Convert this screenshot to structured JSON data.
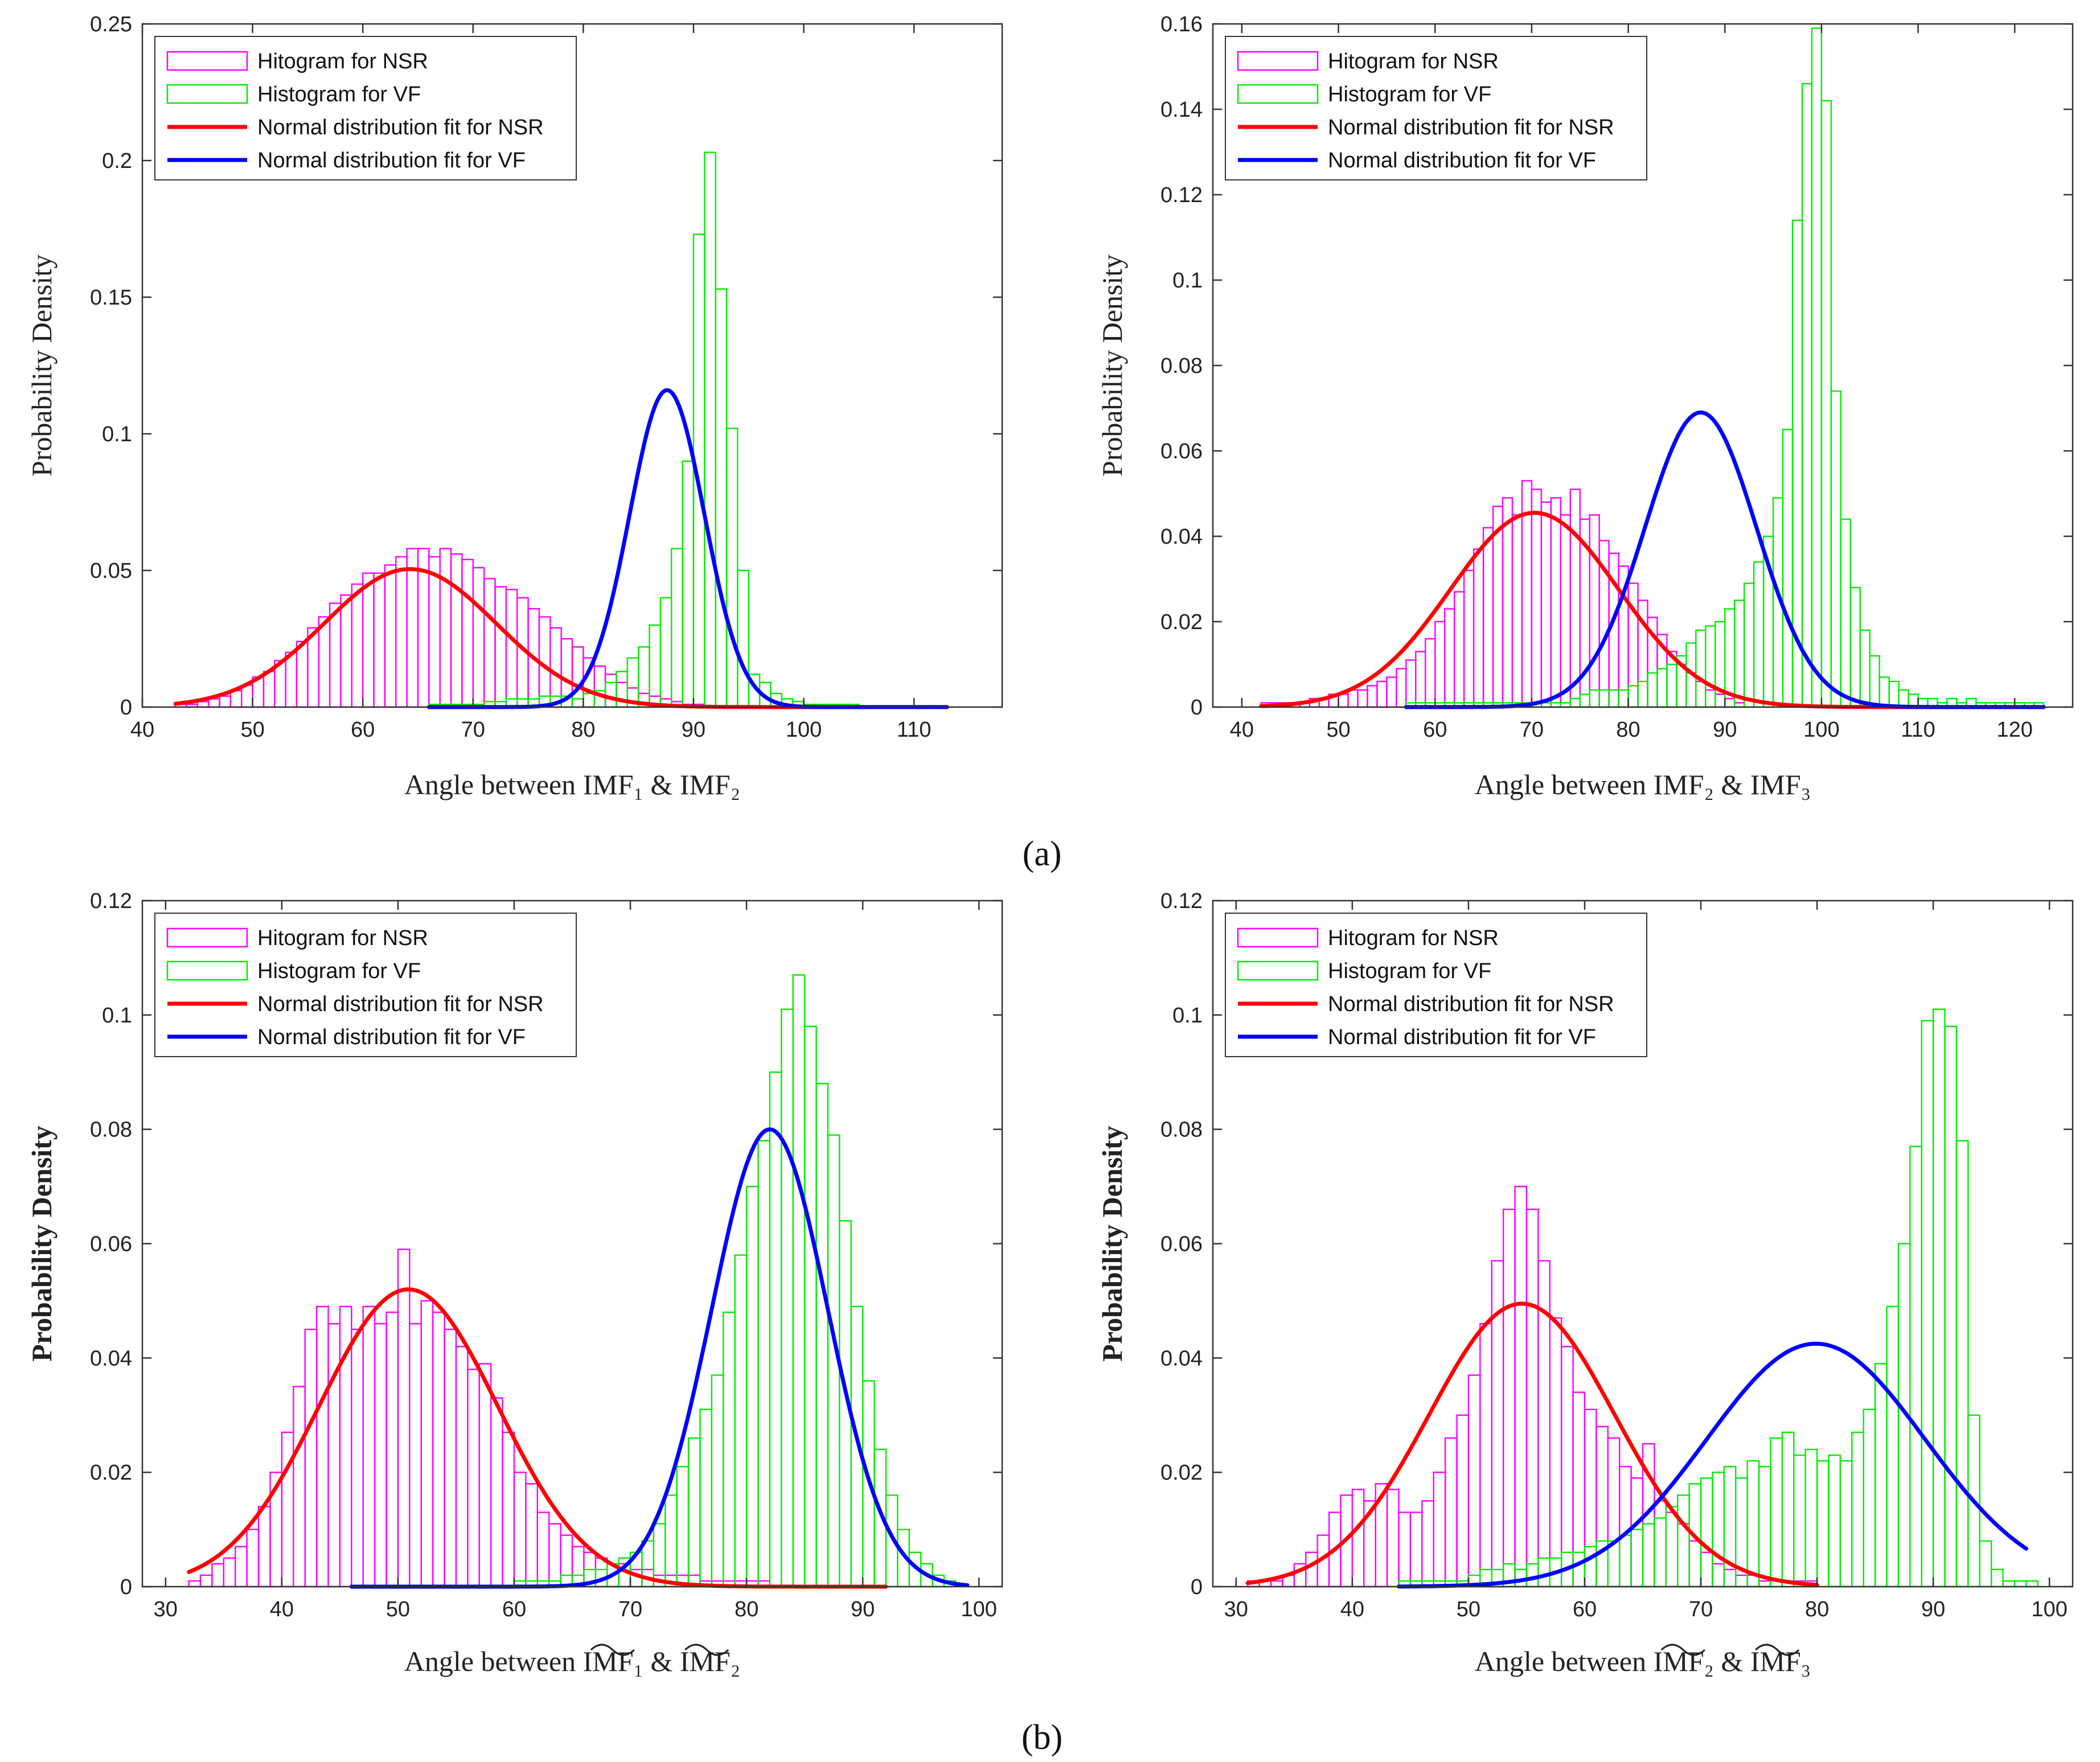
{
  "captions": {
    "a": "(a)",
    "b": "(b)"
  },
  "legend": {
    "hist_nsr": "Hitogram for NSR",
    "hist_vf": "Histogram for VF",
    "fit_nsr": "Normal distribution fit for NSR",
    "fit_vf": "Normal distribution fit for VF"
  },
  "colors": {
    "nsr_hist": "#ff00ff",
    "vf_hist": "#00ee00",
    "fit_nsr": "#ff0000",
    "fit_vf": "#0000ff"
  },
  "chart_data": [
    {
      "type": "bar",
      "panel": "a-left",
      "xlabel": "Angle between IMF₁ & IMF₂",
      "ylabel": "Probability Density",
      "xlim": [
        40,
        118
      ],
      "ylim": [
        0,
        0.25
      ],
      "xticks": [
        40,
        50,
        60,
        70,
        80,
        90,
        100,
        110
      ],
      "yticks": [
        0,
        0.05,
        0.1,
        0.15,
        0.2,
        0.25
      ],
      "ytick_labels": [
        "0",
        "0.05",
        "0.1",
        "0.15",
        "0.2",
        "0.25"
      ],
      "legend_position": "top-left",
      "grid": false,
      "series": [
        {
          "name": "Hitogram for NSR",
          "kind": "histogram",
          "x_start": 43,
          "bin_width": 1,
          "values": [
            0.001,
            0.001,
            0.002,
            0.003,
            0.004,
            0.006,
            0.008,
            0.011,
            0.013,
            0.017,
            0.02,
            0.024,
            0.029,
            0.033,
            0.038,
            0.041,
            0.045,
            0.049,
            0.049,
            0.052,
            0.055,
            0.058,
            0.058,
            0.055,
            0.058,
            0.056,
            0.054,
            0.051,
            0.047,
            0.044,
            0.043,
            0.04,
            0.036,
            0.033,
            0.029,
            0.025,
            0.022,
            0.018,
            0.015,
            0.012,
            0.009,
            0.007,
            0.005,
            0.004,
            0.003,
            0.002,
            0.001,
            0.001
          ]
        },
        {
          "name": "Histogram for VF",
          "kind": "histogram",
          "x_start": 66,
          "bin_width": 1,
          "values": [
            0.001,
            0.001,
            0.001,
            0.001,
            0.001,
            0.002,
            0.002,
            0.003,
            0.003,
            0.003,
            0.004,
            0.004,
            0.004,
            0.003,
            0.005,
            0.006,
            0.009,
            0.013,
            0.018,
            0.022,
            0.03,
            0.04,
            0.058,
            0.09,
            0.173,
            0.203,
            0.153,
            0.102,
            0.05,
            0.012,
            0.009,
            0.005,
            0.003,
            0.002,
            0.001,
            0.001,
            0.001,
            0.001,
            0.001
          ]
        },
        {
          "name": "Normal distribution fit for NSR",
          "kind": "normal_fit",
          "mean": 64.3,
          "std": 7.8,
          "peak": 0.0505,
          "x_range": [
            43,
            113
          ]
        },
        {
          "name": "Normal distribution fit for VF",
          "kind": "normal_fit",
          "mean": 87.6,
          "std": 3.4,
          "peak": 0.116,
          "x_range": [
            66,
            113
          ]
        }
      ]
    },
    {
      "type": "bar",
      "panel": "a-right",
      "xlabel": "Angle between IMF₂ & IMF₃",
      "ylabel": "Probability Density",
      "xlim": [
        37,
        126
      ],
      "ylim": [
        0,
        0.16
      ],
      "xticks": [
        40,
        50,
        60,
        70,
        80,
        90,
        100,
        110,
        120
      ],
      "yticks": [
        0,
        0.02,
        0.04,
        0.06,
        0.08,
        0.1,
        0.12,
        0.14,
        0.16
      ],
      "ytick_labels": [
        "0",
        "0.02",
        "0.04",
        "0.06",
        "0.08",
        "0.1",
        "0.12",
        "0.14",
        "0.16"
      ],
      "legend_position": "top-left",
      "grid": false,
      "series": [
        {
          "name": "Hitogram for NSR",
          "kind": "histogram",
          "x_start": 42,
          "bin_width": 1,
          "values": [
            0.001,
            0.001,
            0.001,
            0.001,
            0.001,
            0.002,
            0.002,
            0.003,
            0.003,
            0.004,
            0.004,
            0.005,
            0.006,
            0.007,
            0.009,
            0.011,
            0.013,
            0.016,
            0.02,
            0.023,
            0.027,
            0.032,
            0.037,
            0.042,
            0.047,
            0.049,
            0.045,
            0.053,
            0.051,
            0.048,
            0.049,
            0.045,
            0.051,
            0.044,
            0.045,
            0.039,
            0.036,
            0.033,
            0.029,
            0.025,
            0.021,
            0.017,
            0.013,
            0.01,
            0.008,
            0.006,
            0.004,
            0.003,
            0.002,
            0.001
          ]
        },
        {
          "name": "Histogram for VF",
          "kind": "histogram",
          "x_start": 57,
          "bin_width": 1,
          "values": [
            0.001,
            0.001,
            0.001,
            0.001,
            0.001,
            0.001,
            0.001,
            0.001,
            0.001,
            0.001,
            0.001,
            0.001,
            0.001,
            0.001,
            0.001,
            0.001,
            0.001,
            0.002,
            0.003,
            0.004,
            0.004,
            0.004,
            0.004,
            0.005,
            0.006,
            0.008,
            0.009,
            0.01,
            0.012,
            0.015,
            0.018,
            0.019,
            0.02,
            0.023,
            0.025,
            0.029,
            0.034,
            0.04,
            0.049,
            0.065,
            0.114,
            0.146,
            0.159,
            0.142,
            0.074,
            0.044,
            0.028,
            0.018,
            0.012,
            0.007,
            0.006,
            0.004,
            0.003,
            0.002,
            0.002,
            0.001,
            0.002,
            0.001,
            0.002,
            0.001,
            0.001,
            0.001,
            0.001,
            0.001,
            0.001,
            0.001
          ]
        },
        {
          "name": "Normal distribution fit for NSR",
          "kind": "normal_fit",
          "mean": 70.3,
          "std": 8.7,
          "peak": 0.0455,
          "x_range": [
            42,
            123
          ]
        },
        {
          "name": "Normal distribution fit for VF",
          "kind": "normal_fit",
          "mean": 87.5,
          "std": 5.8,
          "peak": 0.069,
          "x_range": [
            57,
            123
          ]
        }
      ]
    },
    {
      "type": "bar",
      "panel": "b-left",
      "xlabel": "Angle between IMF₁ & IMF₂",
      "ylabel": "Probability Density",
      "xlim": [
        28,
        102
      ],
      "ylim": [
        0,
        0.12
      ],
      "xticks": [
        30,
        40,
        50,
        60,
        70,
        80,
        90,
        100
      ],
      "yticks": [
        0,
        0.02,
        0.04,
        0.06,
        0.08,
        0.1,
        0.12
      ],
      "ytick_labels": [
        "0",
        "0.02",
        "0.04",
        "0.06",
        "0.08",
        "0.1",
        "0.12"
      ],
      "legend_position": "top-left",
      "grid": false,
      "series": [
        {
          "name": "Hitogram for NSR",
          "kind": "histogram",
          "x_start": 32,
          "bin_width": 1,
          "values": [
            0.001,
            0.002,
            0.004,
            0.005,
            0.007,
            0.01,
            0.014,
            0.02,
            0.027,
            0.035,
            0.045,
            0.049,
            0.046,
            0.049,
            0.045,
            0.049,
            0.046,
            0.048,
            0.059,
            0.046,
            0.05,
            0.048,
            0.045,
            0.042,
            0.038,
            0.039,
            0.033,
            0.027,
            0.02,
            0.018,
            0.013,
            0.011,
            0.009,
            0.007,
            0.006,
            0.005,
            0.004,
            0.004,
            0.003,
            0.003,
            0.002,
            0.002,
            0.002,
            0.002,
            0.001,
            0.001,
            0.001,
            0.001,
            0.001,
            0.001
          ]
        },
        {
          "name": "Histogram for VF",
          "kind": "histogram",
          "x_start": 60,
          "bin_width": 1,
          "values": [
            0.001,
            0.001,
            0.001,
            0.001,
            0.002,
            0.002,
            0.003,
            0.003,
            0.004,
            0.005,
            0.006,
            0.008,
            0.011,
            0.016,
            0.021,
            0.026,
            0.031,
            0.037,
            0.048,
            0.058,
            0.07,
            0.078,
            0.09,
            0.101,
            0.107,
            0.098,
            0.088,
            0.079,
            0.064,
            0.049,
            0.036,
            0.024,
            0.016,
            0.01,
            0.006,
            0.004,
            0.002,
            0.001
          ]
        },
        {
          "name": "Normal distribution fit for NSR",
          "kind": "normal_fit",
          "mean": 50.9,
          "std": 7.7,
          "peak": 0.052,
          "x_range": [
            32,
            92
          ]
        },
        {
          "name": "Normal distribution fit for VF",
          "kind": "normal_fit",
          "mean": 82.0,
          "std": 5.0,
          "peak": 0.08,
          "x_range": [
            46,
            99
          ]
        }
      ]
    },
    {
      "type": "bar",
      "panel": "b-right",
      "xlabel": "Angle between IMF₂ & IMF₃",
      "ylabel": "Probability Density",
      "xlim": [
        28,
        102
      ],
      "ylim": [
        0,
        0.12
      ],
      "xticks": [
        30,
        40,
        50,
        60,
        70,
        80,
        90,
        100
      ],
      "yticks": [
        0,
        0.02,
        0.04,
        0.06,
        0.08,
        0.1,
        0.12
      ],
      "ytick_labels": [
        "0",
        "0.02",
        "0.04",
        "0.06",
        "0.08",
        "0.1",
        "0.12"
      ],
      "legend_position": "top-left",
      "grid": false,
      "series": [
        {
          "name": "Hitogram for NSR",
          "kind": "histogram",
          "x_start": 31,
          "bin_width": 1,
          "values": [
            0.001,
            0.001,
            0.001,
            0.002,
            0.004,
            0.006,
            0.009,
            0.013,
            0.016,
            0.017,
            0.015,
            0.018,
            0.017,
            0.013,
            0.013,
            0.015,
            0.02,
            0.026,
            0.03,
            0.037,
            0.046,
            0.057,
            0.066,
            0.07,
            0.066,
            0.057,
            0.047,
            0.042,
            0.034,
            0.031,
            0.028,
            0.026,
            0.021,
            0.019,
            0.025,
            0.015,
            0.013,
            0.011,
            0.008,
            0.006,
            0.004,
            0.003,
            0.002,
            0.002,
            0.001,
            0.001,
            0.001,
            0.001,
            0.001
          ]
        },
        {
          "name": "Histogram for VF",
          "kind": "histogram",
          "x_start": 44,
          "bin_width": 1,
          "values": [
            0.001,
            0.001,
            0.001,
            0.001,
            0.001,
            0.001,
            0.002,
            0.003,
            0.003,
            0.004,
            0.003,
            0.004,
            0.005,
            0.005,
            0.006,
            0.006,
            0.007,
            0.008,
            0.008,
            0.009,
            0.01,
            0.011,
            0.012,
            0.014,
            0.016,
            0.018,
            0.019,
            0.02,
            0.021,
            0.019,
            0.022,
            0.021,
            0.026,
            0.027,
            0.023,
            0.024,
            0.022,
            0.023,
            0.022,
            0.027,
            0.031,
            0.039,
            0.049,
            0.06,
            0.077,
            0.099,
            0.101,
            0.098,
            0.078,
            0.03,
            0.008,
            0.003,
            0.001,
            0.001,
            0.001
          ]
        },
        {
          "name": "Normal distribution fit for NSR",
          "kind": "normal_fit",
          "mean": 54.6,
          "std": 8.0,
          "peak": 0.0495,
          "x_range": [
            31,
            80
          ]
        },
        {
          "name": "Normal distribution fit for VF",
          "kind": "normal_fit",
          "mean": 79.9,
          "std": 9.4,
          "peak": 0.0425,
          "x_range": [
            44,
            98
          ]
        }
      ]
    }
  ]
}
